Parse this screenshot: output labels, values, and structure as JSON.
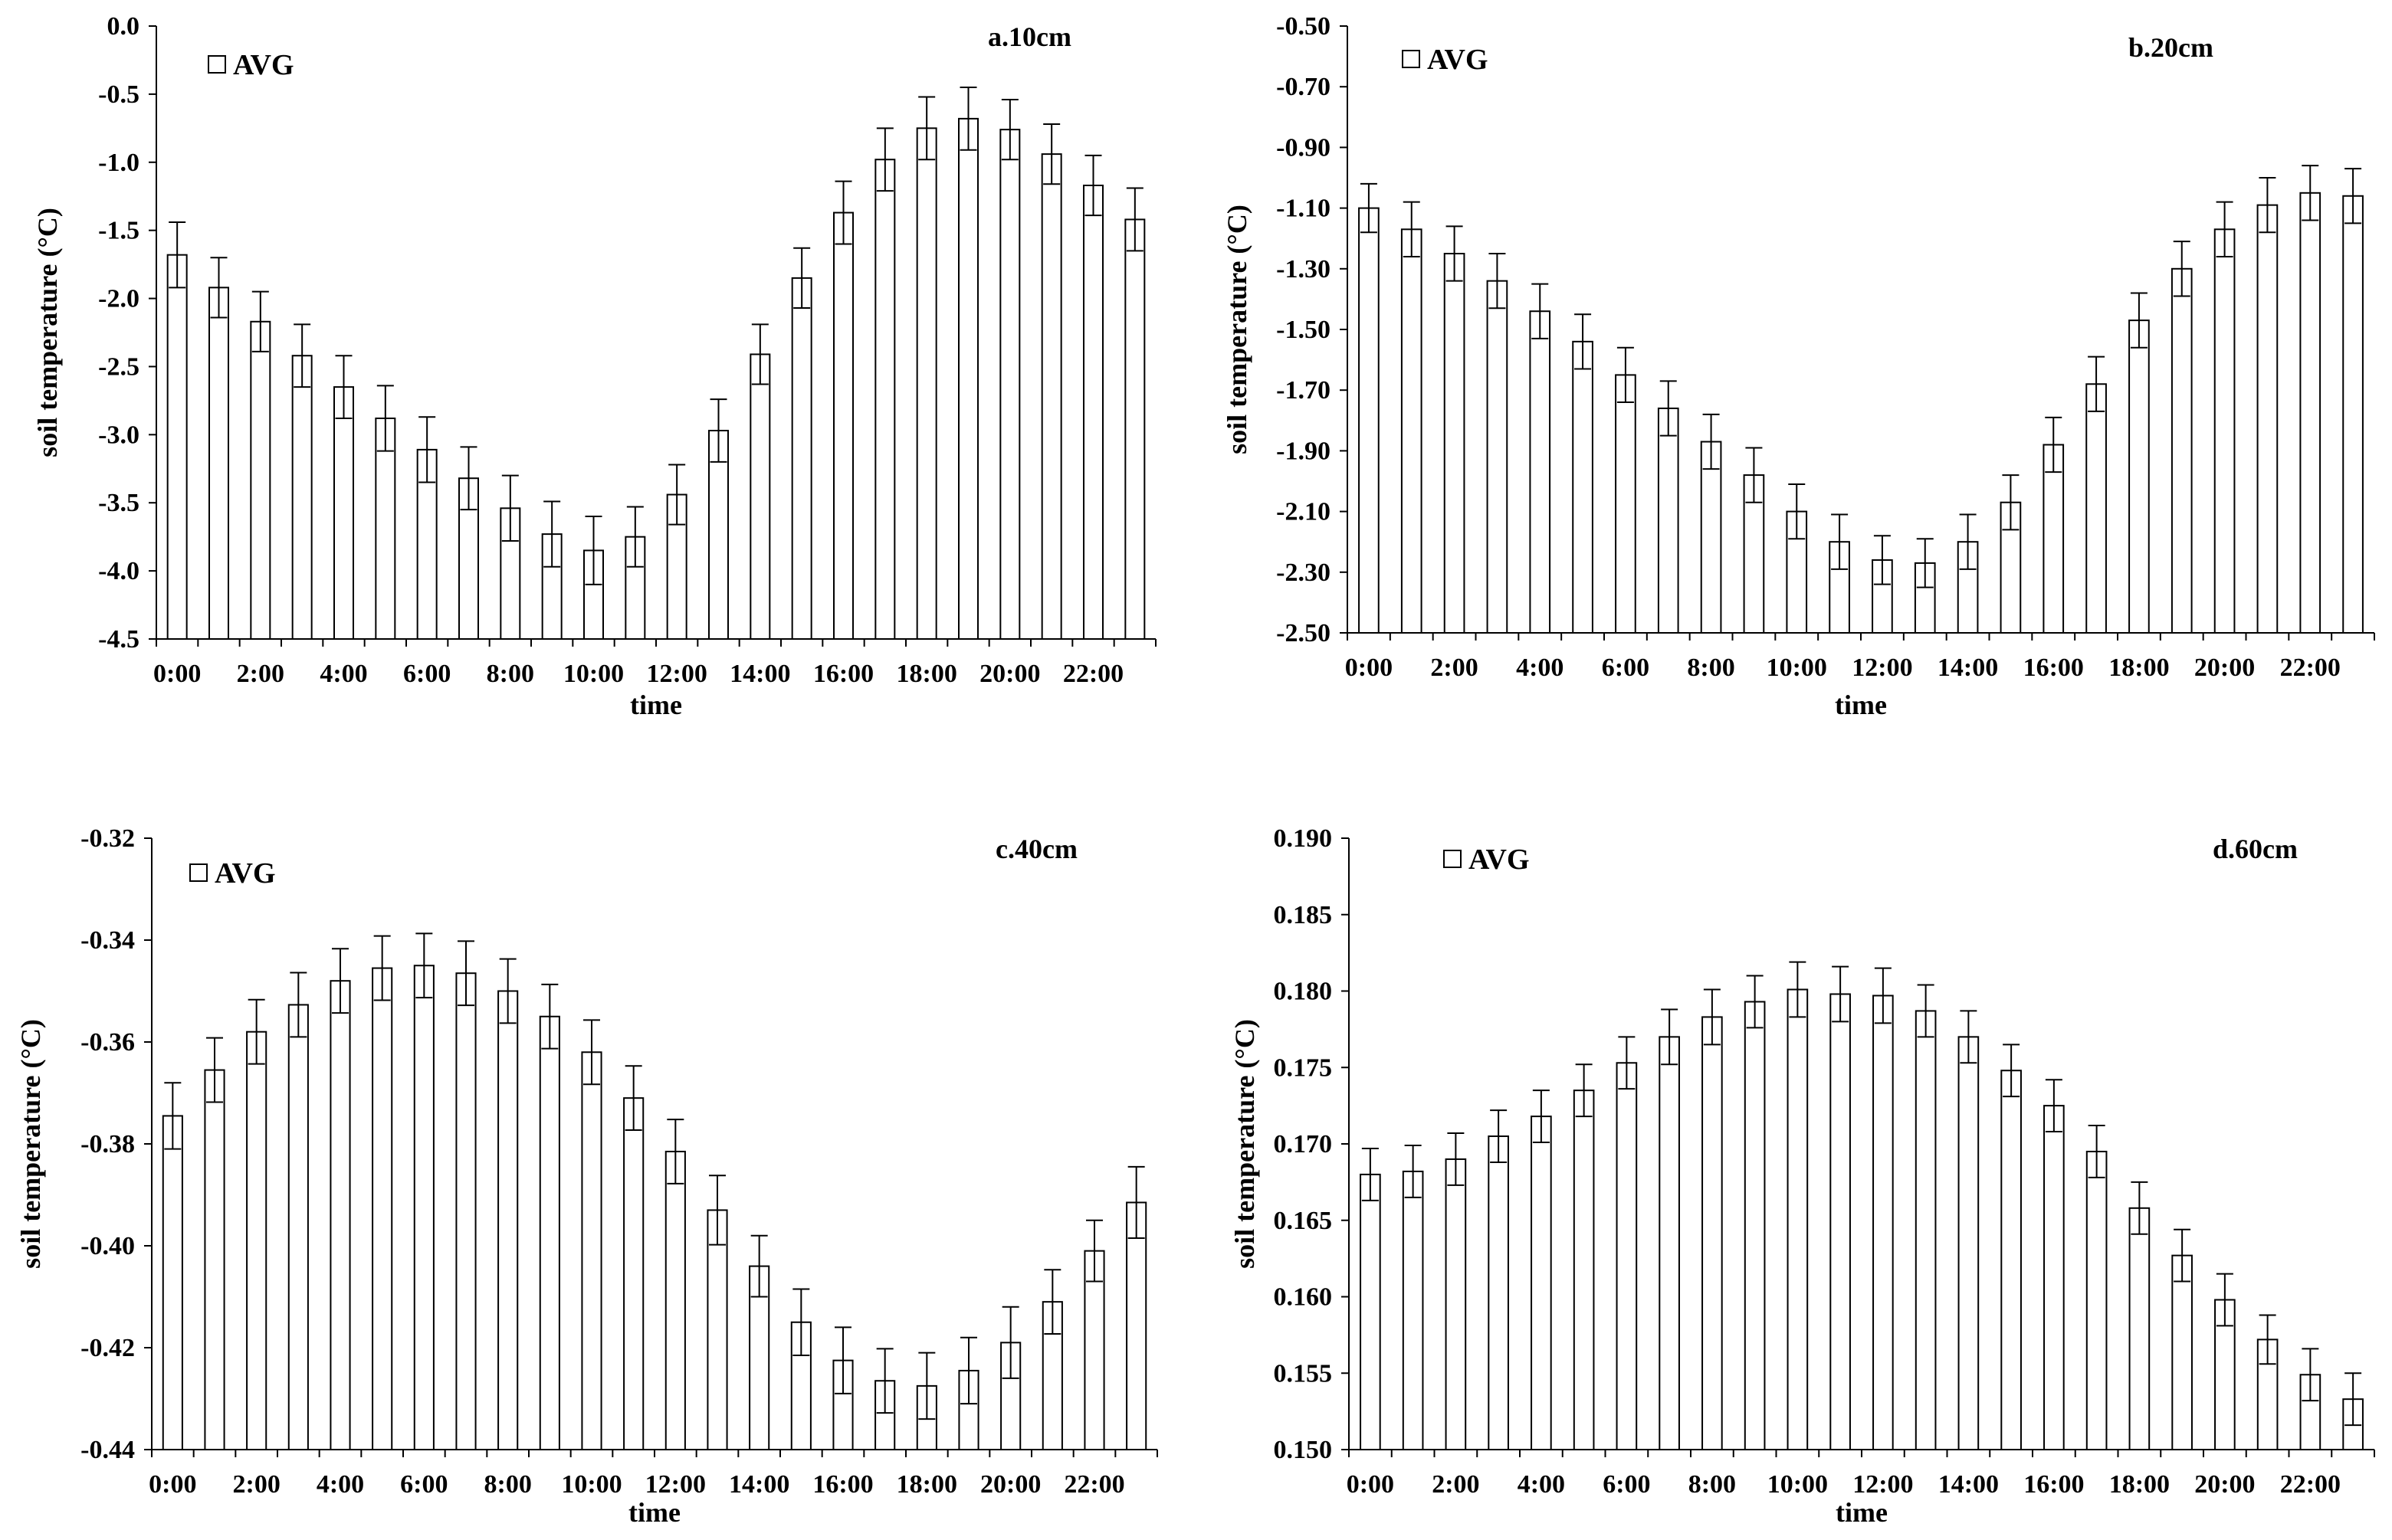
{
  "figure": {
    "time_label": "time",
    "ylabel": "soil temperature (°C)"
  },
  "chart_data": [
    {
      "type": "bar",
      "title": "a.10cm",
      "legend": "AVG",
      "xlabel": "time",
      "ylabel": "soil temperature (°C)",
      "categories": [
        "0:00",
        "1:00",
        "2:00",
        "3:00",
        "4:00",
        "5:00",
        "6:00",
        "7:00",
        "8:00",
        "9:00",
        "10:00",
        "11:00",
        "12:00",
        "13:00",
        "14:00",
        "15:00",
        "16:00",
        "17:00",
        "18:00",
        "19:00",
        "20:00",
        "21:00",
        "22:00",
        "23:00"
      ],
      "xtick_labels": [
        "0:00",
        "2:00",
        "4:00",
        "6:00",
        "8:00",
        "10:00",
        "12:00",
        "14:00",
        "16:00",
        "18:00",
        "20:00",
        "22:00"
      ],
      "values": [
        -1.68,
        -1.92,
        -2.17,
        -2.42,
        -2.65,
        -2.88,
        -3.11,
        -3.32,
        -3.54,
        -3.73,
        -3.85,
        -3.75,
        -3.44,
        -2.97,
        -2.41,
        -1.85,
        -1.37,
        -0.98,
        -0.75,
        -0.68,
        -0.76,
        -0.94,
        -1.17,
        -1.42
      ],
      "errors": [
        0.24,
        0.22,
        0.22,
        0.23,
        0.23,
        0.24,
        0.24,
        0.23,
        0.24,
        0.24,
        0.25,
        0.22,
        0.22,
        0.23,
        0.22,
        0.22,
        0.23,
        0.23,
        0.23,
        0.23,
        0.22,
        0.22,
        0.22,
        0.23
      ],
      "ylim": [
        -4.5,
        0.0
      ],
      "yticks": [
        "0.0",
        "-0.5",
        "-1.0",
        "-1.5",
        "-2.0",
        "-2.5",
        "-3.0",
        "-3.5",
        "-4.0",
        "-4.5"
      ]
    },
    {
      "type": "bar",
      "title": "b.20cm",
      "legend": "AVG",
      "xlabel": "time",
      "ylabel": "soil temperature (°C)",
      "categories": [
        "0:00",
        "1:00",
        "2:00",
        "3:00",
        "4:00",
        "5:00",
        "6:00",
        "7:00",
        "8:00",
        "9:00",
        "10:00",
        "11:00",
        "12:00",
        "13:00",
        "14:00",
        "15:00",
        "16:00",
        "17:00",
        "18:00",
        "19:00",
        "20:00",
        "21:00",
        "22:00",
        "23:00"
      ],
      "xtick_labels": [
        "0:00",
        "2:00",
        "4:00",
        "6:00",
        "8:00",
        "10:00",
        "12:00",
        "14:00",
        "16:00",
        "18:00",
        "20:00",
        "22:00"
      ],
      "values": [
        -1.1,
        -1.17,
        -1.25,
        -1.34,
        -1.44,
        -1.54,
        -1.65,
        -1.76,
        -1.87,
        -1.98,
        -2.1,
        -2.2,
        -2.26,
        -2.27,
        -2.2,
        -2.07,
        -1.88,
        -1.68,
        -1.47,
        -1.3,
        -1.17,
        -1.09,
        -1.05,
        -1.06
      ],
      "errors": [
        0.08,
        0.09,
        0.09,
        0.09,
        0.09,
        0.09,
        0.09,
        0.09,
        0.09,
        0.09,
        0.09,
        0.09,
        0.08,
        0.08,
        0.09,
        0.09,
        0.09,
        0.09,
        0.09,
        0.09,
        0.09,
        0.09,
        0.09,
        0.09
      ],
      "ylim": [
        -2.5,
        -0.5
      ],
      "yticks": [
        "-0.50",
        "-0.70",
        "-0.90",
        "-1.10",
        "-1.30",
        "-1.50",
        "-1.70",
        "-1.90",
        "-2.10",
        "-2.30",
        "-2.50"
      ]
    },
    {
      "type": "bar",
      "title": "c.40cm",
      "legend": "AVG",
      "xlabel": "time",
      "ylabel": "soil temperature (°C)",
      "categories": [
        "0:00",
        "1:00",
        "2:00",
        "3:00",
        "4:00",
        "5:00",
        "6:00",
        "7:00",
        "8:00",
        "9:00",
        "10:00",
        "11:00",
        "12:00",
        "13:00",
        "14:00",
        "15:00",
        "16:00",
        "17:00",
        "18:00",
        "19:00",
        "20:00",
        "21:00",
        "22:00",
        "23:00"
      ],
      "xtick_labels": [
        "0:00",
        "2:00",
        "4:00",
        "6:00",
        "8:00",
        "10:00",
        "12:00",
        "14:00",
        "16:00",
        "18:00",
        "20:00",
        "22:00"
      ],
      "values": [
        -0.3745,
        -0.3655,
        -0.358,
        -0.3527,
        -0.348,
        -0.3455,
        -0.345,
        -0.3465,
        -0.35,
        -0.355,
        -0.362,
        -0.371,
        -0.3815,
        -0.393,
        -0.404,
        -0.415,
        -0.4225,
        -0.4265,
        -0.4275,
        -0.4245,
        -0.419,
        -0.411,
        -0.401,
        -0.3915
      ],
      "errors": [
        0.0065,
        0.0063,
        0.0063,
        0.0063,
        0.0063,
        0.0063,
        0.0063,
        0.0063,
        0.0063,
        0.0063,
        0.0063,
        0.0063,
        0.0063,
        0.0068,
        0.006,
        0.0065,
        0.0065,
        0.0063,
        0.0065,
        0.0065,
        0.007,
        0.0063,
        0.006,
        0.007
      ],
      "ylim": [
        -0.44,
        -0.32
      ],
      "yticks": [
        "-0.32",
        "-0.34",
        "-0.36",
        "-0.38",
        "-0.40",
        "-0.42",
        "-0.44"
      ]
    },
    {
      "type": "bar",
      "title": "d.60cm",
      "legend": "AVG",
      "xlabel": "time",
      "ylabel": "soil temperature (°C)",
      "categories": [
        "0:00",
        "1:00",
        "2:00",
        "3:00",
        "4:00",
        "5:00",
        "6:00",
        "7:00",
        "8:00",
        "9:00",
        "10:00",
        "11:00",
        "12:00",
        "13:00",
        "14:00",
        "15:00",
        "16:00",
        "17:00",
        "18:00",
        "19:00",
        "20:00",
        "21:00",
        "22:00",
        "23:00"
      ],
      "xtick_labels": [
        "0:00",
        "2:00",
        "4:00",
        "6:00",
        "8:00",
        "10:00",
        "12:00",
        "14:00",
        "16:00",
        "18:00",
        "20:00",
        "22:00"
      ],
      "values": [
        0.168,
        0.1682,
        0.169,
        0.1705,
        0.1718,
        0.1735,
        0.1753,
        0.177,
        0.1783,
        0.1793,
        0.1801,
        0.1798,
        0.1797,
        0.1787,
        0.177,
        0.1748,
        0.1725,
        0.1695,
        0.1658,
        0.1627,
        0.1598,
        0.1572,
        0.1549,
        0.1533
      ],
      "errors": [
        0.0017,
        0.0017,
        0.0017,
        0.0017,
        0.0017,
        0.0017,
        0.0017,
        0.0018,
        0.0018,
        0.0017,
        0.0018,
        0.0018,
        0.0018,
        0.0017,
        0.0017,
        0.0017,
        0.0017,
        0.0017,
        0.0017,
        0.0017,
        0.0017,
        0.0016,
        0.0017,
        0.0017
      ],
      "ylim": [
        0.15,
        0.19
      ],
      "yticks": [
        "0.190",
        "0.185",
        "0.180",
        "0.175",
        "0.170",
        "0.165",
        "0.160",
        "0.155",
        "0.150"
      ]
    }
  ]
}
